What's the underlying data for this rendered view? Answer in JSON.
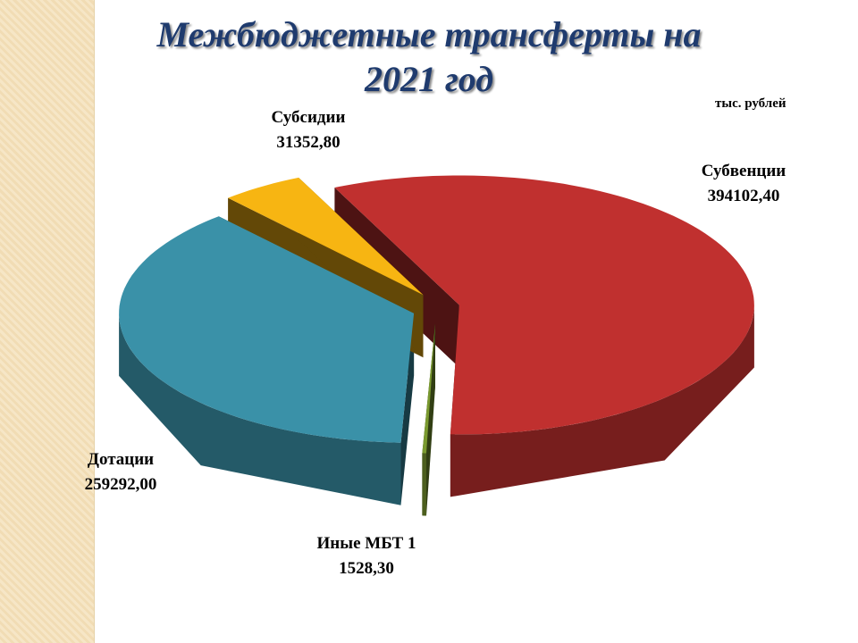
{
  "chart_data": {
    "type": "pie3d",
    "title": "Межбюджетные трансферты на 2021 год",
    "unit_label": "тыс. рублей",
    "categories": [
      "Субвенции",
      "Иные МБТ 1",
      "Дотации",
      "Субсидии"
    ],
    "values": [
      394102.4,
      1528.3,
      259292.0,
      31352.8
    ],
    "value_labels": [
      "394102,40",
      "1528,30",
      "259292,00",
      "31352,80"
    ],
    "colors": [
      "#c0302f",
      "#7a9a30",
      "#3a91a8",
      "#f7b512"
    ]
  }
}
